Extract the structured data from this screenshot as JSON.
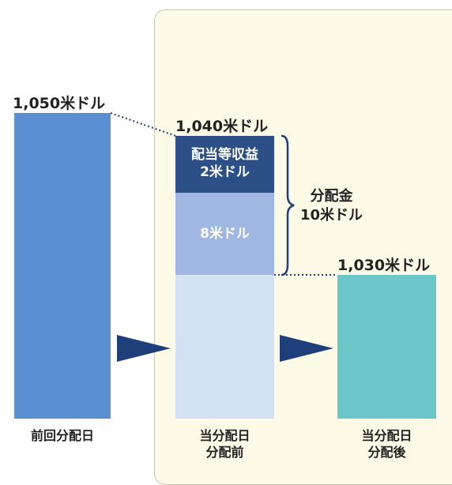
{
  "columns": {
    "previous": {
      "label": "前回分配日",
      "value": "1,050米ドル"
    },
    "before": {
      "label_line1": "当分配日",
      "label_line2": "分配前",
      "value": "1,040米ドル"
    },
    "after": {
      "label_line1": "当分配日",
      "label_line2": "分配後",
      "value": "1,030米ドル"
    }
  },
  "segments": {
    "income": {
      "line1": "配当等収益",
      "line2": "2米ドル"
    },
    "capital": {
      "line1": "8米ドル"
    }
  },
  "distribution": {
    "line1": "分配金",
    "line2": "10米ドル"
  },
  "colors": {
    "previous_bar": "#5b8fd1",
    "income_segment": "#2b4f86",
    "capital_segment": "#9fb7e2",
    "base_segment": "#d4e2f4",
    "after_bar": "#6cc7cb",
    "arrow": "#1f3f7a",
    "panel": "#fdfbe8"
  }
}
